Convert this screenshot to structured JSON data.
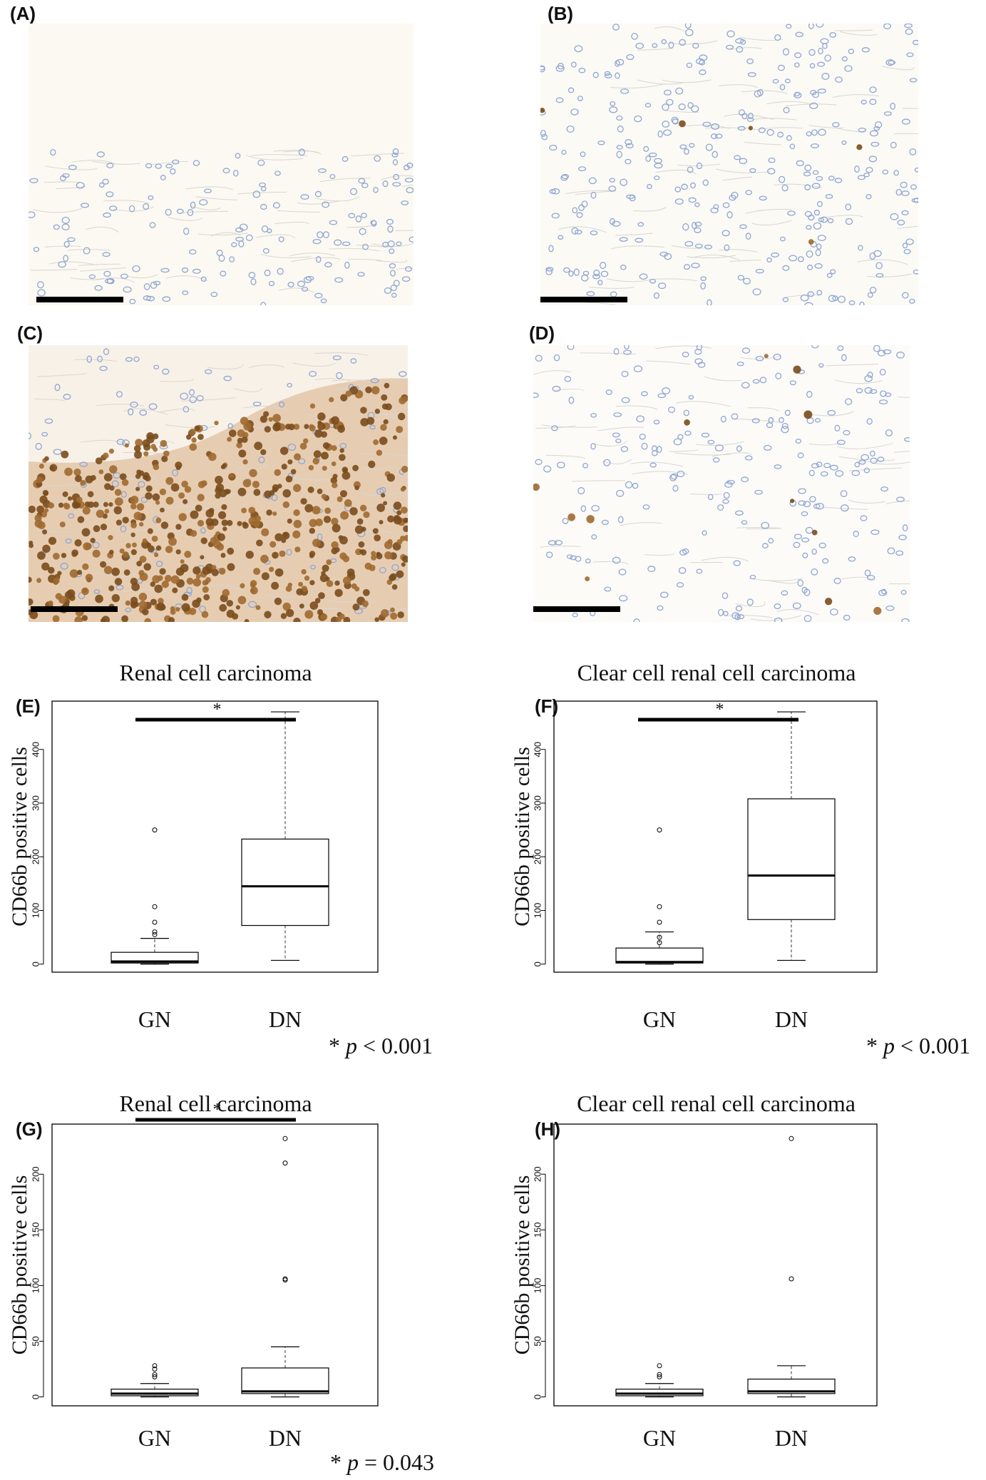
{
  "micrographs": [
    {
      "label": "(A)",
      "stain": "none"
    },
    {
      "label": "(B)",
      "stain": "sparse"
    },
    {
      "label": "(C)",
      "stain": "dense"
    },
    {
      "label": "(D)",
      "stain": "light"
    }
  ],
  "charts": [
    {
      "label": "(E)",
      "title": "Renal cell carcinoma",
      "sig_star": "*",
      "p_star": "*",
      "p_sym": "p",
      "p_rest": " < 0.001"
    },
    {
      "label": "(F)",
      "title": "Clear cell renal cell carcinoma",
      "sig_star": "*",
      "p_star": "*",
      "p_sym": "p",
      "p_rest": " < 0.001"
    },
    {
      "label": "(G)",
      "title": "Renal cell carcinoma",
      "sig_star": "*",
      "p_star": "*",
      "p_sym": "p",
      "p_rest": " = 0.043"
    },
    {
      "label": "(H)",
      "title": "Clear cell renal cell carcinoma",
      "sig_star": "",
      "p_star": "",
      "p_sym": "",
      "p_rest": ""
    }
  ],
  "chart_data": [
    {
      "type": "box",
      "title": "Renal cell carcinoma",
      "xlabel": "",
      "ylabel": "CD66b positive cells",
      "categories": [
        "GN",
        "DN"
      ],
      "yticks": [
        0,
        100,
        200,
        300,
        400
      ],
      "ylim": [
        -15,
        490
      ],
      "significance": "*",
      "p_value": "p < 0.001",
      "boxes": [
        {
          "category": "GN",
          "whisker_low": 0,
          "q1": 2,
          "median": 5,
          "q3": 22,
          "whisker_high": 48,
          "outliers": [
            55,
            60,
            78,
            107,
            250
          ]
        },
        {
          "category": "DN",
          "whisker_low": 7,
          "q1": 72,
          "median": 145,
          "q3": 233,
          "whisker_high": 470,
          "outliers": []
        }
      ]
    },
    {
      "type": "box",
      "title": "Clear cell renal cell carcinoma",
      "xlabel": "",
      "ylabel": "CD66b positive cells",
      "categories": [
        "GN",
        "DN"
      ],
      "yticks": [
        0,
        100,
        200,
        300,
        400
      ],
      "ylim": [
        -15,
        490
      ],
      "significance": "*",
      "p_value": "p < 0.001",
      "boxes": [
        {
          "category": "GN",
          "whisker_low": 0,
          "q1": 2,
          "median": 4,
          "q3": 30,
          "whisker_high": 60,
          "outliers": [
            40,
            50,
            78,
            107,
            250
          ]
        },
        {
          "category": "DN",
          "whisker_low": 7,
          "q1": 83,
          "median": 165,
          "q3": 308,
          "whisker_high": 470,
          "outliers": []
        }
      ]
    },
    {
      "type": "box",
      "title": "Renal cell carcinoma",
      "xlabel": "",
      "ylabel": "CD66b positive cells",
      "categories": [
        "GN",
        "DN"
      ],
      "yticks": [
        0,
        50,
        100,
        150,
        200
      ],
      "ylim": [
        -8,
        245
      ],
      "significance": "*",
      "p_value": "p = 0.043",
      "boxes": [
        {
          "category": "GN",
          "whisker_low": 0,
          "q1": 1,
          "median": 3,
          "q3": 7,
          "whisker_high": 12,
          "outliers": [
            18,
            20,
            25,
            28
          ]
        },
        {
          "category": "DN",
          "whisker_low": 0,
          "q1": 3,
          "median": 5,
          "q3": 26,
          "whisker_high": 45,
          "outliers": [
            105,
            106,
            210,
            232
          ]
        }
      ]
    },
    {
      "type": "box",
      "title": "Clear cell renal cell carcinoma",
      "xlabel": "",
      "ylabel": "CD66b positive cells",
      "categories": [
        "GN",
        "DN"
      ],
      "yticks": [
        0,
        50,
        100,
        150,
        200
      ],
      "ylim": [
        -8,
        245
      ],
      "significance": "",
      "p_value": "",
      "boxes": [
        {
          "category": "GN",
          "whisker_low": 0,
          "q1": 1,
          "median": 3,
          "q3": 7,
          "whisker_high": 12,
          "outliers": [
            18,
            20,
            28
          ]
        },
        {
          "category": "DN",
          "whisker_low": 0,
          "q1": 3,
          "median": 5,
          "q3": 16,
          "whisker_high": 28,
          "outliers": [
            106,
            232
          ]
        }
      ]
    }
  ]
}
